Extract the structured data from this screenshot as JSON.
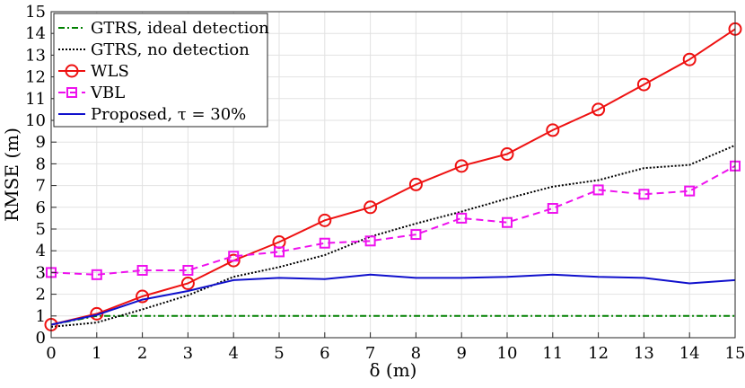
{
  "chart_data": {
    "type": "line",
    "xlabel": "δ (m)",
    "ylabel": "RMSE (m)",
    "xlim": [
      0,
      15
    ],
    "ylim": [
      0,
      15
    ],
    "x_ticks": [
      0,
      1,
      2,
      3,
      4,
      5,
      6,
      7,
      8,
      9,
      10,
      11,
      12,
      13,
      14,
      15
    ],
    "y_ticks": [
      0,
      1,
      2,
      3,
      4,
      5,
      6,
      7,
      8,
      9,
      10,
      11,
      12,
      13,
      14,
      15
    ],
    "grid": true,
    "legend_position": "top-left",
    "x": [
      0,
      1,
      2,
      3,
      4,
      5,
      6,
      7,
      8,
      9,
      10,
      11,
      12,
      13,
      14,
      15
    ],
    "series": [
      {
        "name": "GTRS, ideal detection",
        "color": "#008000",
        "style": "dash-dot",
        "marker": "none",
        "values": [
          0.6,
          1.0,
          1.0,
          1.0,
          1.0,
          1.0,
          1.0,
          1.0,
          1.0,
          1.0,
          1.0,
          1.0,
          1.0,
          1.0,
          1.0,
          1.0
        ]
      },
      {
        "name": "GTRS, no detection",
        "color": "#000000",
        "style": "dotted",
        "marker": "none",
        "values": [
          0.5,
          0.7,
          1.3,
          1.95,
          2.8,
          3.25,
          3.8,
          4.65,
          5.25,
          5.8,
          6.4,
          6.95,
          7.25,
          7.8,
          7.95,
          8.85
        ]
      },
      {
        "name": "WLS",
        "color": "#ee1111",
        "style": "solid",
        "marker": "circle",
        "values": [
          0.6,
          1.1,
          1.9,
          2.5,
          3.55,
          4.4,
          5.4,
          6.0,
          7.05,
          7.9,
          8.45,
          9.55,
          10.5,
          11.65,
          12.8,
          14.2
        ]
      },
      {
        "name": "VBL",
        "color": "#ee11ee",
        "style": "dashed",
        "marker": "square",
        "values": [
          3.0,
          2.9,
          3.1,
          3.1,
          3.75,
          3.95,
          4.35,
          4.45,
          4.75,
          5.5,
          5.3,
          5.95,
          6.8,
          6.6,
          6.75,
          7.9
        ]
      },
      {
        "name": "Proposed, τ = 30%",
        "color": "#1010cc",
        "style": "solid",
        "marker": "none",
        "values": [
          0.6,
          1.05,
          1.75,
          2.15,
          2.65,
          2.75,
          2.7,
          2.9,
          2.75,
          2.75,
          2.8,
          2.9,
          2.8,
          2.75,
          2.5,
          2.65
        ]
      }
    ]
  }
}
